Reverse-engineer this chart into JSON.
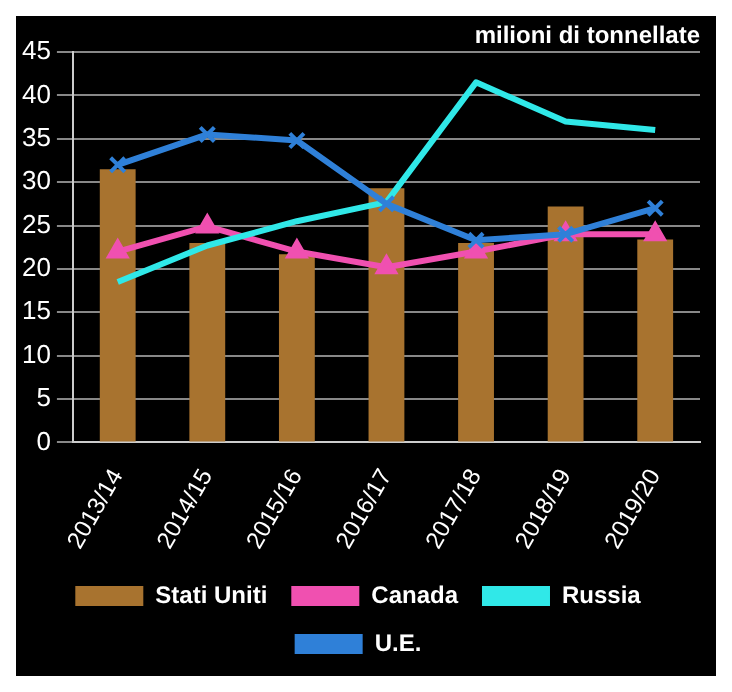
{
  "chart_data": {
    "type": "bar",
    "ylabel": "milioni di tonnellate",
    "categories": [
      "2013/14",
      "2014/15",
      "2015/16",
      "2016/17",
      "2017/18",
      "2018/19",
      "2019/20"
    ],
    "series": [
      {
        "name": "Stati Uniti",
        "color": "#a8732f",
        "values": [
          31.5,
          23,
          21.7,
          29.3,
          23,
          27.2,
          23.4
        ]
      },
      {
        "name": "Canada",
        "type": "line",
        "color": "#f050b0",
        "marker": "triangle",
        "values": [
          22,
          24.9,
          22,
          20.2,
          22,
          24,
          24
        ]
      },
      {
        "name": "Russia",
        "type": "line",
        "color": "#30e8e8",
        "marker": "none",
        "values": [
          18.5,
          22.7,
          25.5,
          27.7,
          41.5,
          37,
          36
        ]
      },
      {
        "name": "U.E.",
        "type": "line",
        "color": "#2f80d8",
        "marker": "cross",
        "values": [
          32,
          35.5,
          34.8,
          27.5,
          23.3,
          24,
          27
        ]
      }
    ],
    "ylim": [
      0,
      45
    ],
    "yticks": [
      0,
      5,
      10,
      15,
      20,
      25,
      30,
      35,
      40,
      45
    ],
    "grid": "y",
    "legend": "bottom"
  }
}
